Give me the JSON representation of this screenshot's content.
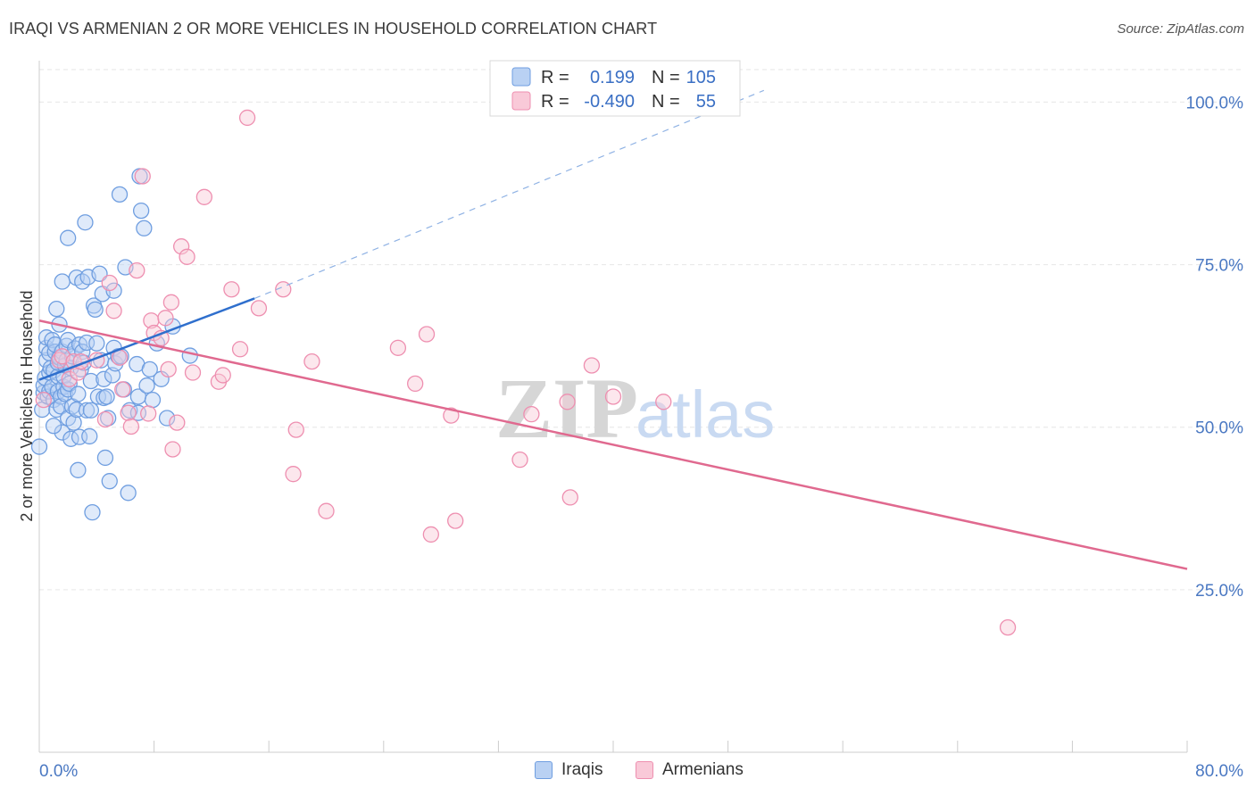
{
  "title": "IRAQI VS ARMENIAN 2 OR MORE VEHICLES IN HOUSEHOLD CORRELATION CHART",
  "source": "Source: ZipAtlas.com",
  "watermark": {
    "zip": "ZIP",
    "atlas": "atlas"
  },
  "chart_data": {
    "type": "scatter",
    "title": "IRAQI VS ARMENIAN 2 OR MORE VEHICLES IN HOUSEHOLD CORRELATION CHART",
    "xlabel": "",
    "ylabel": "2 or more Vehicles in Household",
    "xlim": [
      0,
      80
    ],
    "ylim": [
      0,
      105
    ],
    "x_tick_labels": [
      "0.0%",
      "80.0%"
    ],
    "y_ticks": [
      {
        "value": 25,
        "label": "25.0%"
      },
      {
        "value": 50,
        "label": "50.0%"
      },
      {
        "value": 75,
        "label": "75.0%"
      },
      {
        "value": 100,
        "label": "100.0%"
      }
    ],
    "legend": [
      {
        "r_label": "R =",
        "r_value": "0.199",
        "n_label": "N =",
        "n_value": "105"
      },
      {
        "r_label": "R =",
        "r_value": "-0.490",
        "n_label": "N =",
        "n_value": "55"
      }
    ],
    "series": [
      {
        "name": "Iraqis",
        "color": "#6f9ee0",
        "fill": "#b9d1f3",
        "trend": {
          "x0": 0,
          "y0": 57.3,
          "x1": 15,
          "y1": 69.8,
          "dash_x1": 50.5,
          "dash_y1": 101.8,
          "color": "#2f6fcd"
        },
        "points": [
          [
            0.0,
            47
          ],
          [
            0.2,
            52.7
          ],
          [
            0.3,
            55.3
          ],
          [
            0.3,
            56.4
          ],
          [
            0.4,
            57.6
          ],
          [
            0.5,
            60.3
          ],
          [
            0.5,
            62.2
          ],
          [
            0.5,
            63.8
          ],
          [
            0.6,
            54.7
          ],
          [
            0.7,
            55.5
          ],
          [
            0.7,
            58.4
          ],
          [
            0.7,
            61.4
          ],
          [
            0.8,
            59.1
          ],
          [
            0.9,
            63.4
          ],
          [
            0.9,
            56.2
          ],
          [
            1.0,
            54.2
          ],
          [
            1.0,
            58.7
          ],
          [
            1.1,
            61.6
          ],
          [
            1.1,
            62.7
          ],
          [
            1.2,
            68.2
          ],
          [
            1.2,
            52.7
          ],
          [
            1.3,
            55.5
          ],
          [
            1.3,
            57.8
          ],
          [
            1.3,
            59.9
          ],
          [
            1.4,
            65.8
          ],
          [
            1.4,
            60.7
          ],
          [
            1.5,
            54.7
          ],
          [
            1.5,
            53.2
          ],
          [
            1.6,
            49.2
          ],
          [
            1.6,
            61.6
          ],
          [
            1.6,
            72.4
          ],
          [
            1.7,
            56.2
          ],
          [
            1.7,
            57.8
          ],
          [
            1.8,
            55.1
          ],
          [
            1.8,
            59.5
          ],
          [
            1.9,
            60.3
          ],
          [
            1.9,
            62.5
          ],
          [
            2.0,
            51.4
          ],
          [
            2.0,
            55.8
          ],
          [
            2.0,
            63.4
          ],
          [
            2.1,
            56.7
          ],
          [
            2.2,
            48.2
          ],
          [
            2.2,
            59.1
          ],
          [
            2.3,
            60.9
          ],
          [
            2.3,
            53.2
          ],
          [
            2.4,
            50.7
          ],
          [
            2.5,
            62.1
          ],
          [
            2.6,
            52.7
          ],
          [
            2.6,
            73.0
          ],
          [
            2.7,
            43.4
          ],
          [
            2.7,
            55.1
          ],
          [
            2.8,
            48.5
          ],
          [
            2.8,
            62.7
          ],
          [
            2.9,
            58.9
          ],
          [
            3.0,
            61.6
          ],
          [
            3.0,
            72.4
          ],
          [
            3.1,
            59.9
          ],
          [
            3.2,
            81.5
          ],
          [
            3.3,
            52.6
          ],
          [
            3.3,
            63.0
          ],
          [
            3.4,
            73.1
          ],
          [
            3.5,
            48.6
          ],
          [
            3.6,
            52.6
          ],
          [
            3.6,
            57.1
          ],
          [
            3.7,
            36.9
          ],
          [
            3.8,
            68.7
          ],
          [
            3.9,
            68.1
          ],
          [
            4.0,
            62.9
          ],
          [
            4.1,
            54.7
          ],
          [
            4.2,
            73.6
          ],
          [
            4.3,
            60.3
          ],
          [
            4.4,
            70.5
          ],
          [
            4.5,
            57.4
          ],
          [
            4.5,
            54.5
          ],
          [
            4.6,
            45.3
          ],
          [
            4.7,
            54.7
          ],
          [
            4.8,
            51.4
          ],
          [
            4.9,
            41.7
          ],
          [
            5.1,
            58.0
          ],
          [
            5.2,
            71.0
          ],
          [
            5.2,
            62.2
          ],
          [
            5.3,
            59.8
          ],
          [
            5.5,
            60.9
          ],
          [
            5.6,
            85.8
          ],
          [
            5.7,
            60.9
          ],
          [
            5.9,
            55.8
          ],
          [
            6.0,
            74.6
          ],
          [
            6.2,
            39.9
          ],
          [
            6.3,
            52.6
          ],
          [
            6.8,
            59.7
          ],
          [
            6.9,
            54.7
          ],
          [
            6.9,
            52.2
          ],
          [
            7.0,
            88.6
          ],
          [
            7.1,
            83.3
          ],
          [
            7.3,
            80.6
          ],
          [
            7.5,
            56.4
          ],
          [
            7.7,
            58.9
          ],
          [
            7.9,
            54.2
          ],
          [
            8.2,
            62.9
          ],
          [
            8.5,
            57.4
          ],
          [
            8.9,
            51.4
          ],
          [
            9.3,
            65.5
          ],
          [
            10.5,
            61.0
          ],
          [
            2.0,
            79.1
          ],
          [
            1.0,
            50.2
          ]
        ]
      },
      {
        "name": "Armenians",
        "color": "#ee8fb0",
        "fill": "#f9c9d8",
        "trend": {
          "x0": 0,
          "y0": 66.4,
          "x1": 80,
          "y1": 28.2,
          "color": "#e0698f"
        },
        "points": [
          [
            0.3,
            54.2
          ],
          [
            1.4,
            60.3
          ],
          [
            1.6,
            60.9
          ],
          [
            2.1,
            57.4
          ],
          [
            2.4,
            60.1
          ],
          [
            2.7,
            58.4
          ],
          [
            2.9,
            60.1
          ],
          [
            4.6,
            51.2
          ],
          [
            4.9,
            72.2
          ],
          [
            5.2,
            67.9
          ],
          [
            5.6,
            60.7
          ],
          [
            5.8,
            55.8
          ],
          [
            6.2,
            52.2
          ],
          [
            6.4,
            50.1
          ],
          [
            6.8,
            74.1
          ],
          [
            7.2,
            88.6
          ],
          [
            7.6,
            52.1
          ],
          [
            7.8,
            66.4
          ],
          [
            8.0,
            64.5
          ],
          [
            8.5,
            63.7
          ],
          [
            8.8,
            66.8
          ],
          [
            9.0,
            58.9
          ],
          [
            9.2,
            69.2
          ],
          [
            9.6,
            50.7
          ],
          [
            9.9,
            77.8
          ],
          [
            10.3,
            76.2
          ],
          [
            10.7,
            58.4
          ],
          [
            11.5,
            85.4
          ],
          [
            12.5,
            57.0
          ],
          [
            12.8,
            58.0
          ],
          [
            13.4,
            71.2
          ],
          [
            14.0,
            62.0
          ],
          [
            14.5,
            97.6
          ],
          [
            15.3,
            68.3
          ],
          [
            17.0,
            71.2
          ],
          [
            17.7,
            42.8
          ],
          [
            17.9,
            49.6
          ],
          [
            19.0,
            60.1
          ],
          [
            20.0,
            37.1
          ],
          [
            25.0,
            62.2
          ],
          [
            26.2,
            56.7
          ],
          [
            27.0,
            64.3
          ],
          [
            27.3,
            33.5
          ],
          [
            28.7,
            51.8
          ],
          [
            29.0,
            35.6
          ],
          [
            33.5,
            45.0
          ],
          [
            34.3,
            52.0
          ],
          [
            36.8,
            53.9
          ],
          [
            37.0,
            39.2
          ],
          [
            38.5,
            59.5
          ],
          [
            40.0,
            54.7
          ],
          [
            43.5,
            53.9
          ],
          [
            67.5,
            19.2
          ],
          [
            4.0,
            60.3
          ],
          [
            9.3,
            46.6
          ]
        ]
      }
    ]
  }
}
